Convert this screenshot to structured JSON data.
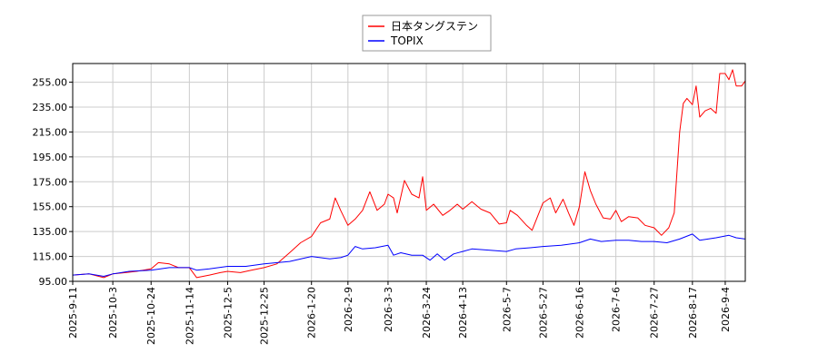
{
  "chart_data": {
    "type": "line",
    "title": "",
    "xlabel": "",
    "ylabel": "",
    "ylim": [
      95,
      270
    ],
    "xlim": [
      "2025-09-11",
      "2026-09-15"
    ],
    "grid": true,
    "legend_placement": "top-center",
    "y_ticks": [
      "95.00",
      "115.00",
      "135.00",
      "155.00",
      "175.00",
      "195.00",
      "215.00",
      "235.00",
      "255.00"
    ],
    "x_ticks": [
      "2025-9-11",
      "2025-10-3",
      "2025-10-24",
      "2025-11-14",
      "2025-12-5",
      "2025-12-25",
      "2026-1-20",
      "2026-2-9",
      "2026-3-3",
      "2026-3-24",
      "2026-4-13",
      "2026-5-7",
      "2026-5-27",
      "2026-6-16",
      "2026-7-6",
      "2026-7-27",
      "2026-8-17",
      "2026-9-4"
    ],
    "series": [
      {
        "name": "日本タングステン",
        "color": "#ff0000",
        "points": [
          [
            "2025-09-11",
            100
          ],
          [
            "2025-09-20",
            101
          ],
          [
            "2025-09-28",
            98
          ],
          [
            "2025-10-03",
            101
          ],
          [
            "2025-10-10",
            102
          ],
          [
            "2025-10-16",
            103
          ],
          [
            "2025-10-24",
            105
          ],
          [
            "2025-10-28",
            110
          ],
          [
            "2025-11-03",
            109
          ],
          [
            "2025-11-08",
            106
          ],
          [
            "2025-11-14",
            106
          ],
          [
            "2025-11-18",
            98
          ],
          [
            "2025-11-25",
            100
          ],
          [
            "2025-12-01",
            102
          ],
          [
            "2025-12-05",
            103
          ],
          [
            "2025-12-12",
            102
          ],
          [
            "2025-12-18",
            104
          ],
          [
            "2025-12-25",
            106
          ],
          [
            "2026-01-01",
            109
          ],
          [
            "2026-01-08",
            118
          ],
          [
            "2026-01-14",
            126
          ],
          [
            "2026-01-20",
            131
          ],
          [
            "2026-01-25",
            142
          ],
          [
            "2026-01-30",
            145
          ],
          [
            "2026-02-02",
            162
          ],
          [
            "2026-02-05",
            152
          ],
          [
            "2026-02-09",
            140
          ],
          [
            "2026-02-13",
            145
          ],
          [
            "2026-02-17",
            152
          ],
          [
            "2026-02-21",
            167
          ],
          [
            "2026-02-25",
            152
          ],
          [
            "2026-03-01",
            157
          ],
          [
            "2026-03-03",
            165
          ],
          [
            "2026-03-06",
            162
          ],
          [
            "2026-03-08",
            150
          ],
          [
            "2026-03-12",
            176
          ],
          [
            "2026-03-16",
            165
          ],
          [
            "2026-03-20",
            162
          ],
          [
            "2026-03-22",
            179
          ],
          [
            "2026-03-24",
            152
          ],
          [
            "2026-03-28",
            157
          ],
          [
            "2026-04-02",
            148
          ],
          [
            "2026-04-06",
            152
          ],
          [
            "2026-04-10",
            157
          ],
          [
            "2026-04-13",
            153
          ],
          [
            "2026-04-18",
            159
          ],
          [
            "2026-04-23",
            153
          ],
          [
            "2026-04-28",
            150
          ],
          [
            "2026-05-03",
            141
          ],
          [
            "2026-05-07",
            142
          ],
          [
            "2026-05-09",
            152
          ],
          [
            "2026-05-13",
            148
          ],
          [
            "2026-05-18",
            140
          ],
          [
            "2026-05-21",
            136
          ],
          [
            "2026-05-27",
            158
          ],
          [
            "2026-05-31",
            162
          ],
          [
            "2026-06-03",
            150
          ],
          [
            "2026-06-07",
            161
          ],
          [
            "2026-06-10",
            150
          ],
          [
            "2026-06-13",
            140
          ],
          [
            "2026-06-16",
            155
          ],
          [
            "2026-06-19",
            183
          ],
          [
            "2026-06-22",
            168
          ],
          [
            "2026-06-25",
            157
          ],
          [
            "2026-06-29",
            146
          ],
          [
            "2026-07-03",
            145
          ],
          [
            "2026-07-06",
            152
          ],
          [
            "2026-07-09",
            143
          ],
          [
            "2026-07-13",
            147
          ],
          [
            "2026-07-18",
            146
          ],
          [
            "2026-07-22",
            140
          ],
          [
            "2026-07-27",
            138
          ],
          [
            "2026-07-31",
            132
          ],
          [
            "2026-08-04",
            138
          ],
          [
            "2026-08-07",
            150
          ],
          [
            "2026-08-10",
            215
          ],
          [
            "2026-08-12",
            238
          ],
          [
            "2026-08-14",
            242
          ],
          [
            "2026-08-17",
            237
          ],
          [
            "2026-08-19",
            252
          ],
          [
            "2026-08-21",
            227
          ],
          [
            "2026-08-24",
            232
          ],
          [
            "2026-08-27",
            234
          ],
          [
            "2026-08-30",
            230
          ],
          [
            "2026-09-01",
            262
          ],
          [
            "2026-09-04",
            262
          ],
          [
            "2026-09-06",
            257
          ],
          [
            "2026-09-08",
            265
          ],
          [
            "2026-09-10",
            252
          ],
          [
            "2026-09-13",
            252
          ],
          [
            "2026-09-15",
            256
          ]
        ]
      },
      {
        "name": "TOPIX",
        "color": "#0000ff",
        "points": [
          [
            "2025-09-11",
            100
          ],
          [
            "2025-09-20",
            101
          ],
          [
            "2025-09-28",
            99
          ],
          [
            "2025-10-03",
            101
          ],
          [
            "2025-10-12",
            103
          ],
          [
            "2025-10-24",
            104
          ],
          [
            "2025-11-03",
            106
          ],
          [
            "2025-11-14",
            106
          ],
          [
            "2025-11-18",
            104
          ],
          [
            "2025-11-25",
            105
          ],
          [
            "2025-12-05",
            107
          ],
          [
            "2025-12-15",
            107
          ],
          [
            "2025-12-25",
            109
          ],
          [
            "2026-01-08",
            111
          ],
          [
            "2026-01-20",
            115
          ],
          [
            "2026-01-30",
            113
          ],
          [
            "2026-02-05",
            114
          ],
          [
            "2026-02-09",
            116
          ],
          [
            "2026-02-13",
            123
          ],
          [
            "2026-02-17",
            121
          ],
          [
            "2026-02-24",
            122
          ],
          [
            "2026-03-03",
            124
          ],
          [
            "2026-03-06",
            116
          ],
          [
            "2026-03-10",
            118
          ],
          [
            "2026-03-16",
            116
          ],
          [
            "2026-03-22",
            116
          ],
          [
            "2026-03-26",
            112
          ],
          [
            "2026-03-30",
            117
          ],
          [
            "2026-04-03",
            112
          ],
          [
            "2026-04-08",
            117
          ],
          [
            "2026-04-13",
            119
          ],
          [
            "2026-04-18",
            121
          ],
          [
            "2026-04-28",
            120
          ],
          [
            "2026-05-07",
            119
          ],
          [
            "2026-05-12",
            121
          ],
          [
            "2026-05-20",
            122
          ],
          [
            "2026-05-27",
            123
          ],
          [
            "2026-06-06",
            124
          ],
          [
            "2026-06-16",
            126
          ],
          [
            "2026-06-22",
            129
          ],
          [
            "2026-06-28",
            127
          ],
          [
            "2026-07-06",
            128
          ],
          [
            "2026-07-13",
            128
          ],
          [
            "2026-07-20",
            127
          ],
          [
            "2026-07-27",
            127
          ],
          [
            "2026-08-03",
            126
          ],
          [
            "2026-08-10",
            129
          ],
          [
            "2026-08-17",
            133
          ],
          [
            "2026-08-21",
            128
          ],
          [
            "2026-08-30",
            130
          ],
          [
            "2026-09-06",
            132
          ],
          [
            "2026-09-10",
            130
          ],
          [
            "2026-09-15",
            129
          ]
        ]
      }
    ]
  }
}
